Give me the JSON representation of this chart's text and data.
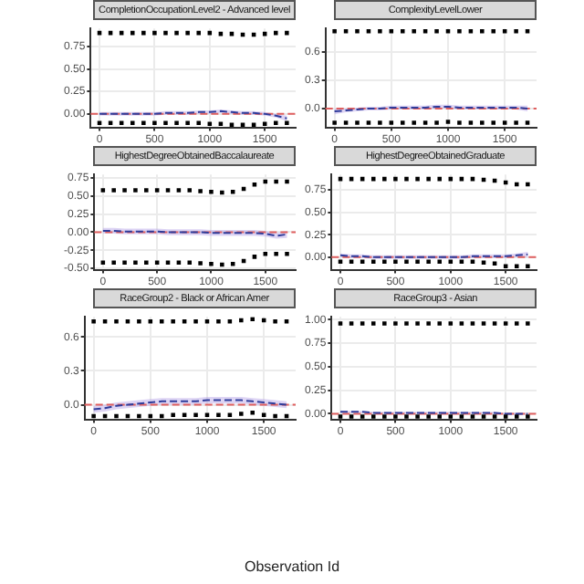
{
  "chart_data": [
    {
      "type": "scatter",
      "title": "CompletionOccupationLevel2 - Advanced level",
      "x": [
        0,
        100,
        200,
        300,
        400,
        500,
        600,
        700,
        800,
        900,
        1000,
        1100,
        1200,
        1300,
        1400,
        1500,
        1600,
        1700
      ],
      "xlim": [
        -80,
        1780
      ],
      "xticks": [
        0,
        500,
        1000,
        1500
      ],
      "ylim": [
        -0.15,
        0.95
      ],
      "yticks": [
        {
          "value": 0,
          "label": "0.00"
        },
        {
          "value": 0.25,
          "label": "0.25"
        },
        {
          "value": 0.5,
          "label": "0.50"
        },
        {
          "value": 0.75,
          "label": "0.75"
        }
      ],
      "grid": true,
      "series": [
        {
          "marker": "square",
          "color": "#000000",
          "values": [
            0.9,
            0.9,
            0.9,
            0.9,
            0.9,
            0.9,
            0.9,
            0.9,
            0.9,
            0.9,
            0.9,
            0.89,
            0.89,
            0.88,
            0.88,
            0.89,
            0.9,
            0.9
          ]
        },
        {
          "marker": "square",
          "color": "#000000",
          "values": [
            -0.1,
            -0.1,
            -0.1,
            -0.1,
            -0.1,
            -0.1,
            -0.1,
            -0.1,
            -0.1,
            -0.1,
            -0.11,
            -0.11,
            -0.12,
            -0.12,
            -0.12,
            -0.11,
            -0.1,
            -0.1
          ]
        },
        {
          "type": "line",
          "color": "#2f3c9a",
          "line_style": "dashed",
          "values": [
            0,
            0,
            0,
            0,
            0,
            0,
            0.01,
            0.01,
            0.01,
            0.02,
            0.02,
            0.03,
            0.02,
            0.01,
            0.01,
            0,
            -0.02,
            -0.05
          ],
          "lower": [
            -0.02,
            -0.02,
            -0.02,
            -0.02,
            -0.02,
            -0.02,
            -0.01,
            -0.01,
            -0.01,
            0,
            0,
            0.01,
            0,
            -0.01,
            -0.01,
            -0.02,
            -0.04,
            -0.08
          ],
          "upper": [
            0.02,
            0.02,
            0.02,
            0.02,
            0.02,
            0.02,
            0.03,
            0.03,
            0.03,
            0.04,
            0.04,
            0.05,
            0.04,
            0.03,
            0.03,
            0.02,
            0,
            -0.02
          ]
        }
      ],
      "ref_lines": [
        {
          "axis": "y",
          "value": 0,
          "color": "#e06060",
          "line_style": "dashed"
        }
      ]
    },
    {
      "type": "scatter",
      "title": "ComplexityLevelLower",
      "x": [
        0,
        100,
        200,
        300,
        400,
        500,
        600,
        700,
        800,
        900,
        1000,
        1100,
        1200,
        1300,
        1400,
        1500,
        1600,
        1700
      ],
      "xlim": [
        -80,
        1780
      ],
      "xticks": [
        0,
        500,
        1000,
        1500
      ],
      "ylim": [
        -0.2,
        0.85
      ],
      "yticks": [
        {
          "value": 0,
          "label": "0.0"
        },
        {
          "value": 0.3,
          "label": "0.3"
        },
        {
          "value": 0.6,
          "label": "0.6"
        }
      ],
      "grid": true,
      "series": [
        {
          "marker": "square",
          "color": "#000000",
          "values": [
            0.82,
            0.82,
            0.82,
            0.82,
            0.82,
            0.82,
            0.82,
            0.82,
            0.82,
            0.82,
            0.82,
            0.82,
            0.82,
            0.82,
            0.82,
            0.82,
            0.82,
            0.82
          ]
        },
        {
          "marker": "square",
          "color": "#000000",
          "values": [
            -0.15,
            -0.15,
            -0.15,
            -0.15,
            -0.15,
            -0.15,
            -0.15,
            -0.15,
            -0.15,
            -0.15,
            -0.14,
            -0.15,
            -0.15,
            -0.15,
            -0.15,
            -0.15,
            -0.15,
            -0.15
          ]
        },
        {
          "type": "line",
          "color": "#2f3c9a",
          "line_style": "dashed",
          "values": [
            -0.03,
            -0.02,
            -0.01,
            0,
            0,
            0.01,
            0.01,
            0.01,
            0.01,
            0.02,
            0.02,
            0.01,
            0.01,
            0.01,
            0.01,
            0.01,
            0.01,
            0
          ],
          "lower": [
            -0.06,
            -0.04,
            -0.03,
            -0.02,
            -0.02,
            -0.01,
            -0.01,
            -0.01,
            -0.01,
            0,
            0,
            -0.01,
            -0.01,
            -0.01,
            -0.01,
            -0.01,
            -0.01,
            -0.03
          ],
          "upper": [
            0,
            0,
            0.01,
            0.02,
            0.02,
            0.03,
            0.03,
            0.03,
            0.03,
            0.04,
            0.04,
            0.03,
            0.03,
            0.03,
            0.03,
            0.03,
            0.03,
            0.03
          ]
        }
      ],
      "ref_lines": [
        {
          "axis": "y",
          "value": 0,
          "color": "#e06060",
          "line_style": "dashed"
        }
      ]
    },
    {
      "type": "scatter",
      "title": "HighestDegreeObtainedBaccalaureate",
      "x": [
        0,
        100,
        200,
        300,
        400,
        500,
        600,
        700,
        800,
        900,
        1000,
        1100,
        1200,
        1300,
        1400,
        1500,
        1600,
        1700
      ],
      "xlim": [
        -80,
        1780
      ],
      "xticks": [
        0,
        500,
        1000,
        1500
      ],
      "ylim": [
        -0.52,
        0.8
      ],
      "yticks": [
        {
          "value": -0.5,
          "label": "-0.50"
        },
        {
          "value": -0.25,
          "label": "-0.25"
        },
        {
          "value": 0,
          "label": "0.00"
        },
        {
          "value": 0.25,
          "label": "0.25"
        },
        {
          "value": 0.5,
          "label": "0.50"
        },
        {
          "value": 0.75,
          "label": "0.75"
        }
      ],
      "grid": true,
      "series": [
        {
          "marker": "square",
          "color": "#000000",
          "values": [
            0.58,
            0.58,
            0.58,
            0.58,
            0.58,
            0.58,
            0.58,
            0.58,
            0.58,
            0.57,
            0.56,
            0.55,
            0.56,
            0.6,
            0.66,
            0.7,
            0.7,
            0.7
          ]
        },
        {
          "marker": "square",
          "color": "#000000",
          "values": [
            -0.42,
            -0.42,
            -0.42,
            -0.42,
            -0.42,
            -0.42,
            -0.42,
            -0.42,
            -0.42,
            -0.43,
            -0.44,
            -0.45,
            -0.44,
            -0.4,
            -0.34,
            -0.3,
            -0.3,
            -0.3
          ]
        },
        {
          "type": "line",
          "color": "#2f3c9a",
          "line_style": "dashed",
          "values": [
            0.02,
            0.02,
            0.01,
            0.01,
            0.01,
            0.01,
            0,
            0,
            0,
            0,
            -0.01,
            -0.01,
            -0.01,
            -0.01,
            -0.01,
            -0.02,
            -0.05,
            -0.03
          ],
          "lower": [
            -0.02,
            -0.02,
            -0.03,
            -0.03,
            -0.03,
            -0.03,
            -0.04,
            -0.04,
            -0.04,
            -0.04,
            -0.05,
            -0.05,
            -0.05,
            -0.05,
            -0.05,
            -0.06,
            -0.09,
            -0.08
          ],
          "upper": [
            0.06,
            0.06,
            0.05,
            0.05,
            0.05,
            0.05,
            0.04,
            0.04,
            0.04,
            0.04,
            0.03,
            0.03,
            0.03,
            0.03,
            0.03,
            0.02,
            -0.01,
            0.02
          ]
        }
      ],
      "ref_lines": [
        {
          "axis": "y",
          "value": 0,
          "color": "#e06060",
          "line_style": "dashed"
        }
      ]
    },
    {
      "type": "scatter",
      "title": "HighestDegreeObtainedGraduate",
      "x": [
        0,
        100,
        200,
        300,
        400,
        500,
        600,
        700,
        800,
        900,
        1000,
        1100,
        1200,
        1300,
        1400,
        1500,
        1600,
        1700
      ],
      "xlim": [
        -80,
        1780
      ],
      "xticks": [
        0,
        500,
        1000,
        1500
      ],
      "ylim": [
        -0.14,
        0.92
      ],
      "yticks": [
        {
          "value": 0,
          "label": "0.00"
        },
        {
          "value": 0.25,
          "label": "0.25"
        },
        {
          "value": 0.5,
          "label": "0.50"
        },
        {
          "value": 0.75,
          "label": "0.75"
        }
      ],
      "grid": true,
      "series": [
        {
          "marker": "square",
          "color": "#000000",
          "values": [
            0.87,
            0.87,
            0.87,
            0.87,
            0.87,
            0.87,
            0.87,
            0.87,
            0.87,
            0.87,
            0.87,
            0.87,
            0.87,
            0.86,
            0.85,
            0.83,
            0.81,
            0.81
          ]
        },
        {
          "marker": "square",
          "color": "#000000",
          "values": [
            -0.05,
            -0.05,
            -0.05,
            -0.05,
            -0.05,
            -0.05,
            -0.05,
            -0.05,
            -0.05,
            -0.05,
            -0.05,
            -0.05,
            -0.05,
            -0.06,
            -0.07,
            -0.1,
            -0.1,
            -0.1
          ]
        },
        {
          "type": "line",
          "color": "#2f3c9a",
          "line_style": "dashed",
          "values": [
            0.02,
            0.01,
            0.01,
            0,
            0,
            0,
            0,
            0,
            0,
            0,
            0,
            0,
            0.01,
            0.01,
            0.01,
            0.01,
            0.02,
            0.03
          ],
          "lower": [
            0,
            -0.01,
            -0.01,
            -0.02,
            -0.02,
            -0.02,
            -0.02,
            -0.02,
            -0.02,
            -0.02,
            -0.02,
            -0.02,
            -0.01,
            -0.01,
            -0.01,
            -0.01,
            0,
            0
          ],
          "upper": [
            0.04,
            0.03,
            0.03,
            0.02,
            0.02,
            0.02,
            0.02,
            0.02,
            0.02,
            0.02,
            0.02,
            0.02,
            0.03,
            0.03,
            0.03,
            0.03,
            0.04,
            0.06
          ]
        }
      ],
      "ref_lines": [
        {
          "axis": "y",
          "value": 0,
          "color": "#e06060",
          "line_style": "dashed"
        }
      ]
    },
    {
      "type": "scatter",
      "title": "RaceGroup2 - Black or African Amer",
      "x": [
        0,
        100,
        200,
        300,
        400,
        500,
        600,
        700,
        800,
        900,
        1000,
        1100,
        1200,
        1300,
        1400,
        1500,
        1600,
        1700
      ],
      "xlim": [
        -80,
        1780
      ],
      "xticks": [
        0,
        500,
        1000,
        1500
      ],
      "ylim": [
        -0.13,
        0.78
      ],
      "yticks": [
        {
          "value": 0,
          "label": "0.0"
        },
        {
          "value": 0.3,
          "label": "0.3"
        },
        {
          "value": 0.6,
          "label": "0.6"
        }
      ],
      "grid": true,
      "series": [
        {
          "marker": "square",
          "color": "#000000",
          "values": [
            0.74,
            0.74,
            0.74,
            0.74,
            0.74,
            0.74,
            0.74,
            0.74,
            0.74,
            0.74,
            0.74,
            0.74,
            0.74,
            0.75,
            0.76,
            0.75,
            0.74,
            0.74
          ]
        },
        {
          "marker": "square",
          "color": "#000000",
          "values": [
            -0.1,
            -0.1,
            -0.1,
            -0.1,
            -0.1,
            -0.1,
            -0.1,
            -0.09,
            -0.09,
            -0.09,
            -0.09,
            -0.09,
            -0.09,
            -0.08,
            -0.07,
            -0.09,
            -0.1,
            -0.1
          ]
        },
        {
          "type": "line",
          "color": "#2f3c9a",
          "line_style": "dashed",
          "values": [
            -0.04,
            -0.03,
            -0.01,
            0,
            0.01,
            0.02,
            0.03,
            0.03,
            0.03,
            0.03,
            0.04,
            0.04,
            0.04,
            0.04,
            0.03,
            0.02,
            0.01,
            0
          ],
          "lower": [
            -0.07,
            -0.06,
            -0.04,
            -0.03,
            -0.02,
            -0.01,
            0,
            0,
            0,
            0,
            0.01,
            0.01,
            0.01,
            0.01,
            0,
            -0.01,
            -0.02,
            -0.03
          ],
          "upper": [
            -0.01,
            0,
            0.02,
            0.03,
            0.04,
            0.05,
            0.06,
            0.06,
            0.06,
            0.06,
            0.07,
            0.07,
            0.07,
            0.07,
            0.06,
            0.05,
            0.04,
            0.03
          ]
        }
      ],
      "ref_lines": [
        {
          "axis": "y",
          "value": 0,
          "color": "#e06060",
          "line_style": "dashed"
        }
      ]
    },
    {
      "type": "scatter",
      "title": "RaceGroup3 - Asian",
      "xlabel": "Observation Id",
      "x": [
        0,
        100,
        200,
        300,
        400,
        500,
        600,
        700,
        800,
        900,
        1000,
        1100,
        1200,
        1300,
        1400,
        1500,
        1600,
        1700
      ],
      "xlim": [
        -80,
        1780
      ],
      "xticks": [
        0,
        500,
        1000,
        1500
      ],
      "ylim": [
        -0.06,
        1.03
      ],
      "yticks": [
        {
          "value": 0,
          "label": "0.00"
        },
        {
          "value": 0.25,
          "label": "0.25"
        },
        {
          "value": 0.5,
          "label": "0.50"
        },
        {
          "value": 0.75,
          "label": "0.75"
        },
        {
          "value": 1,
          "label": "1.00"
        }
      ],
      "grid": true,
      "series": [
        {
          "marker": "square",
          "color": "#000000",
          "values": [
            0.96,
            0.96,
            0.96,
            0.96,
            0.96,
            0.96,
            0.96,
            0.96,
            0.96,
            0.96,
            0.96,
            0.96,
            0.96,
            0.96,
            0.96,
            0.96,
            0.96,
            0.96
          ]
        },
        {
          "marker": "square",
          "color": "#000000",
          "values": [
            -0.03,
            -0.03,
            -0.03,
            -0.03,
            -0.03,
            -0.03,
            -0.03,
            -0.03,
            -0.03,
            -0.03,
            -0.03,
            -0.03,
            -0.03,
            -0.03,
            -0.03,
            -0.03,
            -0.03,
            -0.03
          ]
        },
        {
          "type": "line",
          "color": "#2f3c9a",
          "line_style": "dashed",
          "values": [
            0.02,
            0.02,
            0.02,
            0.01,
            0.01,
            0.01,
            0.01,
            0.01,
            0.01,
            0.01,
            0.01,
            0.01,
            0.01,
            0.01,
            0.01,
            0,
            0,
            0
          ],
          "lower": [
            0.01,
            0.01,
            0.01,
            0,
            0,
            0,
            0,
            0,
            0,
            0,
            0,
            0,
            0,
            0,
            0,
            -0.01,
            -0.01,
            -0.01
          ],
          "upper": [
            0.03,
            0.03,
            0.03,
            0.02,
            0.02,
            0.02,
            0.02,
            0.02,
            0.02,
            0.02,
            0.02,
            0.02,
            0.02,
            0.02,
            0.02,
            0.01,
            0.01,
            0.01
          ]
        }
      ],
      "ref_lines": [
        {
          "axis": "y",
          "value": 0,
          "color": "#e06060",
          "line_style": "dashed"
        }
      ]
    }
  ]
}
